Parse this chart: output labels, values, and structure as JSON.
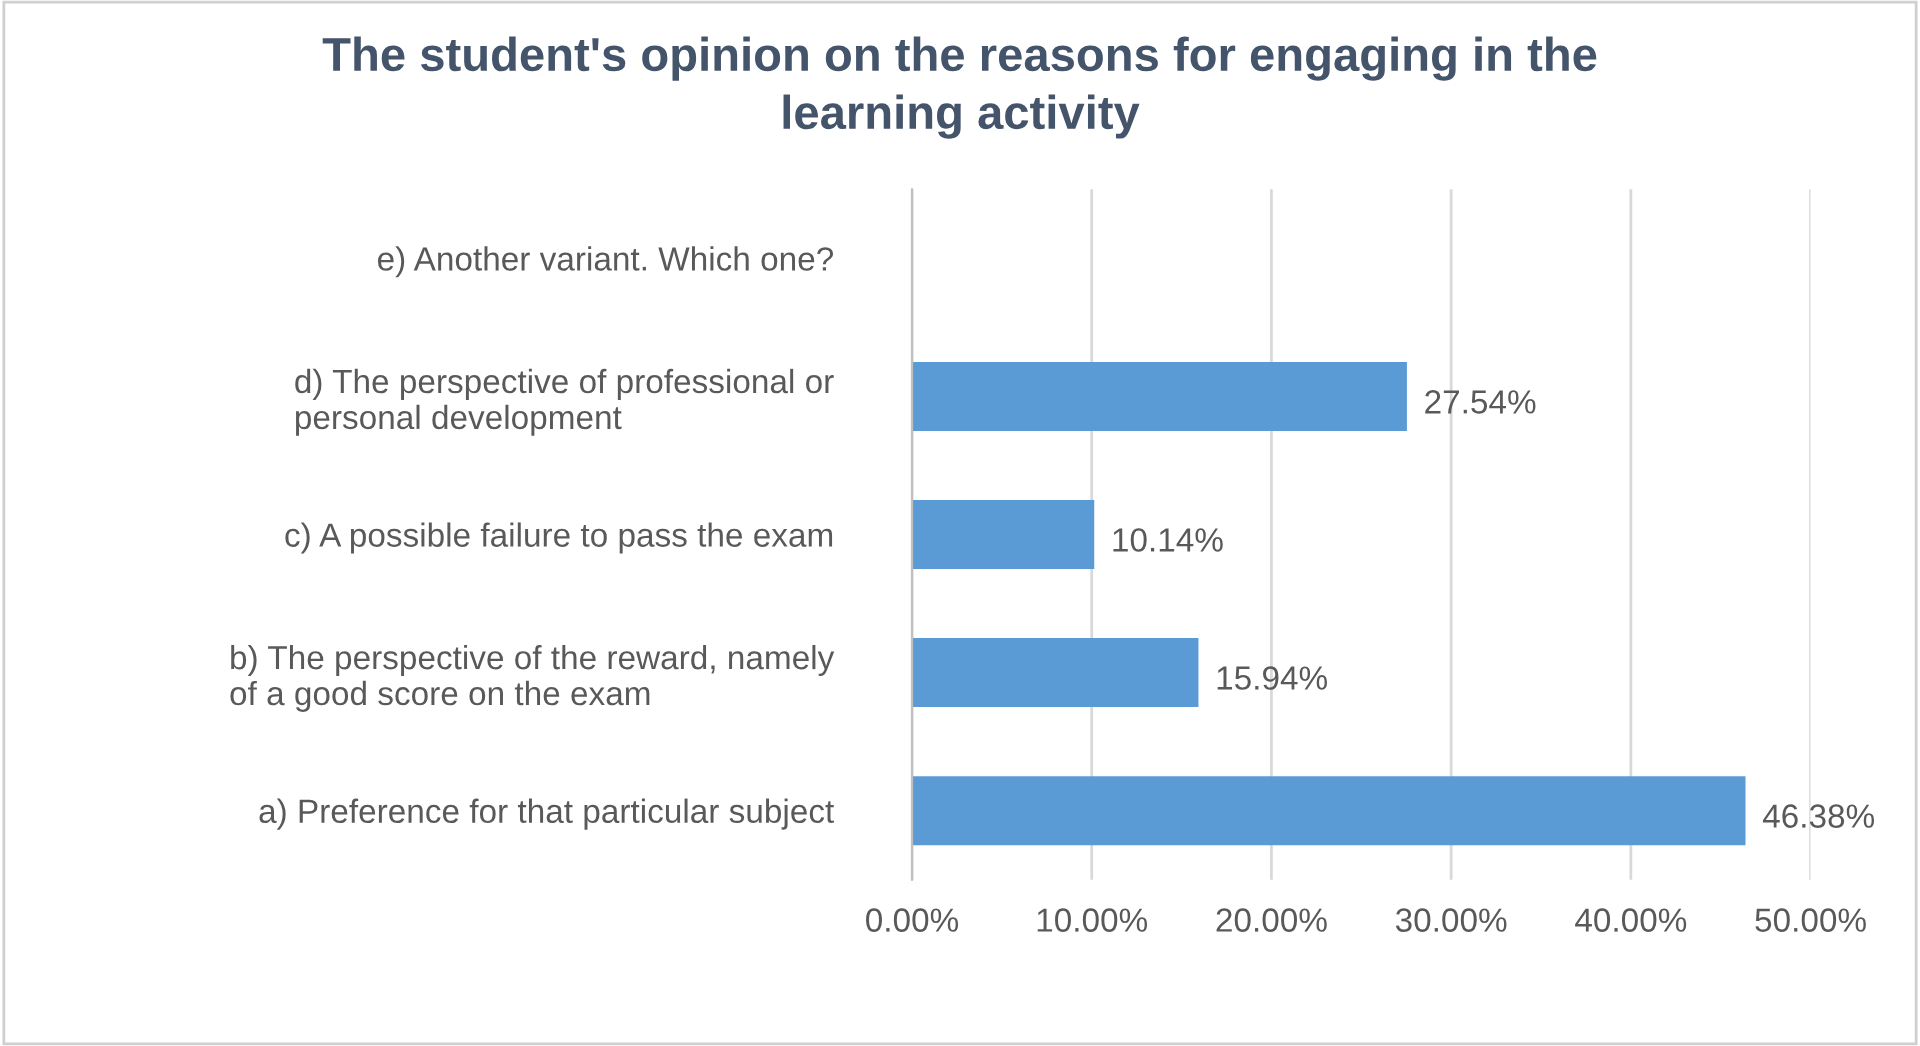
{
  "chart_data": {
    "type": "bar",
    "orientation": "horizontal",
    "title": "The student's opinion on the reasons for engaging in the\nlearning activity",
    "categories": [
      "e) Another variant. Which one?",
      "d) The perspective of professional or\npersonal development",
      "c) A possible failure to pass the exam",
      "b) The perspective of the reward, namely\nof a good score on the exam",
      "a) Preference for that particular subject"
    ],
    "values": [
      null,
      27.54,
      10.14,
      15.94,
      46.38
    ],
    "value_labels": [
      null,
      "27.54%",
      "10.14%",
      "15.94%",
      "46.38%"
    ],
    "color": "#5b9bd5",
    "xlim": [
      0,
      50
    ],
    "xticks": [
      {
        "value": 0,
        "label": "0.00%"
      },
      {
        "value": 10,
        "label": "10.00%"
      },
      {
        "value": 20,
        "label": "20.00%"
      },
      {
        "value": 30,
        "label": "30.00%"
      },
      {
        "value": 40,
        "label": "40.00%"
      },
      {
        "value": 50,
        "label": "50.00%"
      }
    ],
    "grid": "x",
    "legend": false
  }
}
